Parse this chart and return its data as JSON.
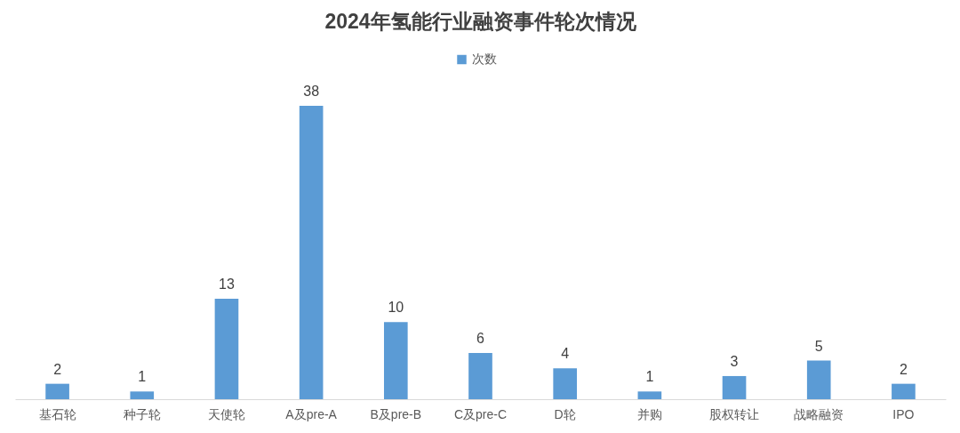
{
  "chart_data": {
    "type": "bar",
    "title": "2024年氢能行业融资事件轮次情况",
    "categories": [
      "基石轮",
      "种子轮",
      "天使轮",
      "A及pre-A",
      "B及pre-B",
      "C及pre-C",
      "D轮",
      "并购",
      "股权转让",
      "战略融资",
      "IPO"
    ],
    "series": [
      {
        "name": "次数",
        "color": "#5b9bd5",
        "values": [
          2,
          1,
          13,
          38,
          10,
          6,
          4,
          1,
          3,
          5,
          2
        ]
      }
    ],
    "data_labels": true,
    "legend": "top"
  }
}
